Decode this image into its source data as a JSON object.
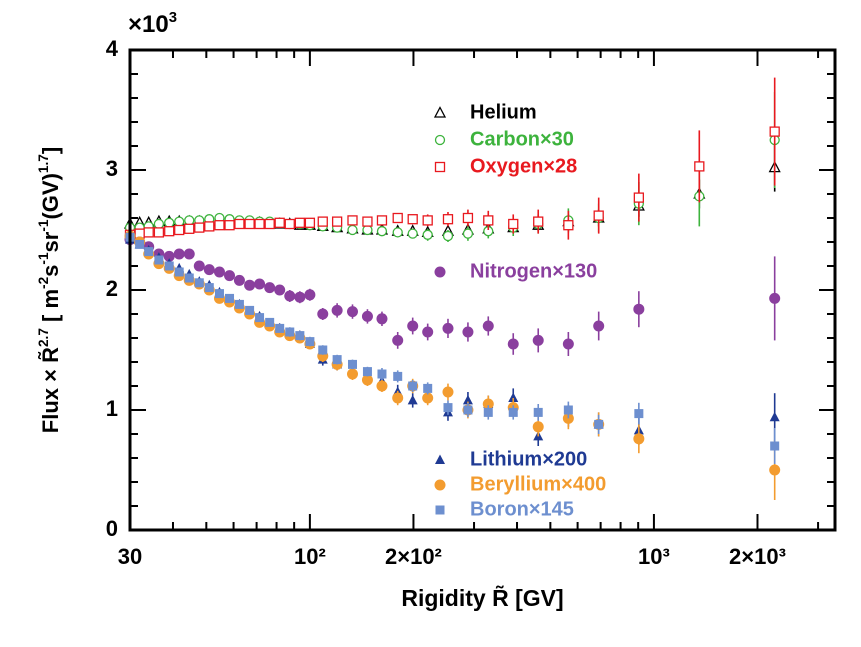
{
  "chart_data": {
    "type": "scatter",
    "y_multiplier_parts": [
      "×10",
      "3"
    ],
    "ylabel_parts": [
      "Flux × R̃",
      "2.7",
      " [ m",
      "-2",
      "s",
      "-1",
      "sr",
      "-1",
      "(GV)",
      "1.7",
      "]"
    ],
    "xlabel": "Rigidity R̃ [GV]",
    "xscale": "log",
    "xlim": [
      30,
      3360
    ],
    "ylim": [
      0,
      4
    ],
    "xticks": [
      30,
      {
        "value": 100,
        "label": "10²"
      },
      {
        "value": 200,
        "label": "2×10²"
      },
      {
        "value": 1000,
        "label": "10³"
      },
      {
        "value": 2000,
        "label": "2×10³"
      }
    ],
    "xminor": [
      40,
      50,
      60,
      70,
      80,
      90,
      300,
      400,
      500,
      600,
      700,
      800,
      900,
      3000
    ],
    "yticks": [
      0,
      1,
      2,
      3,
      4
    ],
    "yminor": [
      0.2,
      0.4,
      0.6,
      0.8,
      1.2,
      1.4,
      1.6,
      1.8,
      2.2,
      2.4,
      2.6,
      2.8,
      3.2,
      3.4,
      3.6,
      3.8
    ],
    "x": [
      30,
      32,
      34,
      36.4,
      39,
      41.7,
      44.6,
      47.7,
      51,
      54.6,
      58.4,
      62.4,
      66.8,
      71.4,
      76.4,
      81.7,
      87.4,
      93.5,
      100,
      109,
      120,
      133,
      147,
      162,
      180,
      199,
      220,
      252,
      288,
      330,
      390,
      461,
      564,
      691,
      904,
      1355,
      2244
    ],
    "series": [
      {
        "name": "Helium",
        "marker": "triangle-open",
        "color": "#000000",
        "values": [
          2.55,
          2.56,
          2.56,
          2.57,
          2.57,
          2.57,
          2.57,
          2.57,
          2.57,
          2.57,
          2.56,
          2.56,
          2.56,
          2.56,
          2.55,
          2.55,
          2.55,
          2.54,
          2.54,
          2.53,
          2.52,
          2.51,
          2.5,
          2.5,
          2.49,
          2.49,
          2.48,
          2.49,
          2.5,
          2.51,
          2.52,
          2.54,
          2.57,
          2.6,
          2.7,
          2.8,
          3.02
        ],
        "errors": [
          0.02,
          0.02,
          0.02,
          0.02,
          0.02,
          0.02,
          0.02,
          0.02,
          0.02,
          0.02,
          0.02,
          0.02,
          0.02,
          0.02,
          0.02,
          0.02,
          0.02,
          0.02,
          0.02,
          0.02,
          0.02,
          0.02,
          0.02,
          0.02,
          0.02,
          0.02,
          0.03,
          0.03,
          0.03,
          0.04,
          0.04,
          0.05,
          0.06,
          0.07,
          0.09,
          0.12,
          0.2
        ]
      },
      {
        "name": "Carbon×30",
        "marker": "circle-open",
        "color": "#3db33d",
        "values": [
          2.52,
          2.52,
          2.53,
          2.55,
          2.56,
          2.57,
          2.58,
          2.58,
          2.59,
          2.6,
          2.59,
          2.58,
          2.58,
          2.57,
          2.57,
          2.56,
          2.55,
          2.55,
          2.54,
          2.53,
          2.52,
          2.5,
          2.5,
          2.49,
          2.48,
          2.47,
          2.46,
          2.45,
          2.47,
          2.49,
          2.52,
          2.55,
          2.58,
          2.6,
          2.72,
          2.78,
          3.25
        ],
        "errors": [
          0.03,
          0.03,
          0.03,
          0.03,
          0.03,
          0.03,
          0.03,
          0.03,
          0.03,
          0.03,
          0.03,
          0.03,
          0.03,
          0.03,
          0.03,
          0.03,
          0.03,
          0.03,
          0.03,
          0.03,
          0.03,
          0.03,
          0.03,
          0.03,
          0.04,
          0.04,
          0.05,
          0.05,
          0.06,
          0.06,
          0.07,
          0.08,
          0.1,
          0.12,
          0.18,
          0.25,
          0.4
        ]
      },
      {
        "name": "Oxygen×28",
        "marker": "square-open",
        "color": "#e8191f",
        "values": [
          2.46,
          2.47,
          2.48,
          2.48,
          2.49,
          2.5,
          2.51,
          2.52,
          2.53,
          2.54,
          2.54,
          2.55,
          2.55,
          2.55,
          2.55,
          2.56,
          2.55,
          2.56,
          2.56,
          2.57,
          2.57,
          2.58,
          2.57,
          2.58,
          2.6,
          2.59,
          2.58,
          2.59,
          2.6,
          2.58,
          2.55,
          2.57,
          2.54,
          2.62,
          2.77,
          3.03,
          3.32
        ],
        "errors": [
          0.03,
          0.03,
          0.03,
          0.03,
          0.03,
          0.03,
          0.03,
          0.03,
          0.03,
          0.03,
          0.03,
          0.03,
          0.03,
          0.03,
          0.03,
          0.03,
          0.03,
          0.03,
          0.03,
          0.04,
          0.04,
          0.04,
          0.04,
          0.04,
          0.04,
          0.04,
          0.05,
          0.06,
          0.07,
          0.08,
          0.08,
          0.1,
          0.12,
          0.15,
          0.2,
          0.3,
          0.45
        ]
      },
      {
        "name": "Nitrogen×130",
        "marker": "circle",
        "color": "#8a3f9e",
        "values": [
          2.42,
          2.4,
          2.36,
          2.3,
          2.28,
          2.3,
          2.3,
          2.2,
          2.17,
          2.15,
          2.12,
          2.08,
          2.04,
          2.05,
          2.02,
          2.0,
          1.95,
          1.94,
          1.96,
          1.8,
          1.83,
          1.82,
          1.78,
          1.76,
          1.58,
          1.7,
          1.65,
          1.68,
          1.65,
          1.7,
          1.55,
          1.58,
          1.55,
          1.7,
          1.84,
          null,
          1.93
        ],
        "errors": [
          0.03,
          0.03,
          0.03,
          0.03,
          0.03,
          0.03,
          0.03,
          0.03,
          0.03,
          0.03,
          0.04,
          0.04,
          0.04,
          0.04,
          0.04,
          0.04,
          0.05,
          0.05,
          0.05,
          0.05,
          0.06,
          0.06,
          0.06,
          0.06,
          0.07,
          0.07,
          0.07,
          0.08,
          0.08,
          0.08,
          0.09,
          0.1,
          0.1,
          0.12,
          0.15,
          null,
          0.35
        ]
      },
      {
        "name": "Lithium×200",
        "marker": "triangle",
        "color": "#1f3a93",
        "values": [
          2.42,
          2.38,
          2.33,
          2.27,
          2.22,
          2.18,
          2.13,
          2.07,
          2.04,
          1.98,
          1.92,
          1.88,
          1.82,
          1.78,
          1.72,
          1.68,
          1.64,
          1.62,
          1.55,
          1.42,
          1.38,
          1.32,
          1.28,
          1.24,
          1.15,
          1.08,
          1.12,
          0.98,
          1.08,
          1.05,
          1.1,
          0.78,
          0.95,
          0.88,
          0.83,
          null,
          0.94
        ],
        "errors": [
          0.03,
          0.03,
          0.03,
          0.03,
          0.03,
          0.03,
          0.03,
          0.03,
          0.03,
          0.03,
          0.03,
          0.03,
          0.03,
          0.03,
          0.04,
          0.04,
          0.04,
          0.04,
          0.04,
          0.05,
          0.05,
          0.05,
          0.05,
          0.05,
          0.06,
          0.06,
          0.06,
          0.07,
          0.07,
          0.07,
          0.08,
          0.08,
          0.09,
          0.1,
          0.12,
          null,
          0.2
        ]
      },
      {
        "name": "Beryllium×400",
        "marker": "circle",
        "color": "#f39c2f",
        "values": [
          2.45,
          2.4,
          2.3,
          2.22,
          2.18,
          2.12,
          2.08,
          2.05,
          2.0,
          1.93,
          1.9,
          1.85,
          1.8,
          1.73,
          1.7,
          1.65,
          1.62,
          1.6,
          1.55,
          1.45,
          1.38,
          1.3,
          1.25,
          1.2,
          1.1,
          1.2,
          1.1,
          1.15,
          1.0,
          1.05,
          1.02,
          0.86,
          0.93,
          0.88,
          0.76,
          null,
          0.5
        ],
        "errors": [
          0.03,
          0.03,
          0.03,
          0.03,
          0.03,
          0.03,
          0.03,
          0.03,
          0.03,
          0.03,
          0.03,
          0.03,
          0.03,
          0.03,
          0.04,
          0.04,
          0.04,
          0.04,
          0.04,
          0.05,
          0.05,
          0.05,
          0.05,
          0.05,
          0.06,
          0.06,
          0.06,
          0.07,
          0.07,
          0.07,
          0.08,
          0.08,
          0.09,
          0.1,
          0.12,
          null,
          0.25
        ]
      },
      {
        "name": "Boron×145",
        "marker": "square",
        "color": "#6d8fcf",
        "values": [
          2.44,
          2.38,
          2.32,
          2.25,
          2.2,
          2.15,
          2.1,
          2.06,
          2.02,
          1.97,
          1.93,
          1.88,
          1.83,
          1.77,
          1.73,
          1.68,
          1.65,
          1.62,
          1.57,
          1.5,
          1.42,
          1.38,
          1.32,
          1.3,
          1.28,
          1.2,
          1.18,
          1.02,
          1.0,
          0.98,
          0.98,
          0.98,
          1.0,
          0.88,
          0.97,
          null,
          0.7
        ],
        "errors": [
          0.03,
          0.03,
          0.03,
          0.03,
          0.03,
          0.03,
          0.03,
          0.03,
          0.03,
          0.03,
          0.03,
          0.03,
          0.03,
          0.03,
          0.03,
          0.03,
          0.04,
          0.04,
          0.04,
          0.04,
          0.04,
          0.04,
          0.04,
          0.05,
          0.05,
          0.05,
          0.05,
          0.06,
          0.06,
          0.06,
          0.06,
          0.07,
          0.07,
          0.08,
          0.09,
          null,
          0.15
        ]
      }
    ]
  }
}
